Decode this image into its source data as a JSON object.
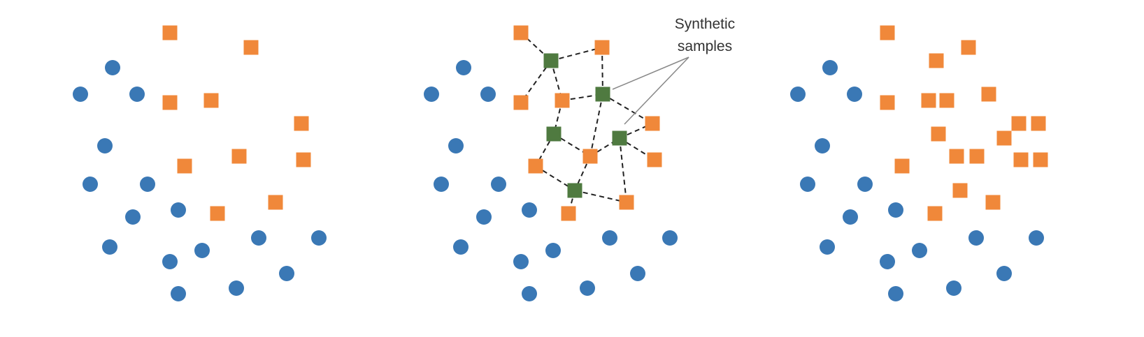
{
  "diagram": {
    "annotation_text_line1": "Synthetic",
    "annotation_text_line2": "samples",
    "colors": {
      "majority": "#3a78b5",
      "minority": "#f0883a",
      "synthetic": "#4f7a40",
      "edge": "#222222",
      "callout": "#888888",
      "text": "#333333"
    },
    "panels": [
      {
        "name": "original-data"
      },
      {
        "name": "smote-interpolation"
      },
      {
        "name": "oversampled-data"
      }
    ]
  }
}
